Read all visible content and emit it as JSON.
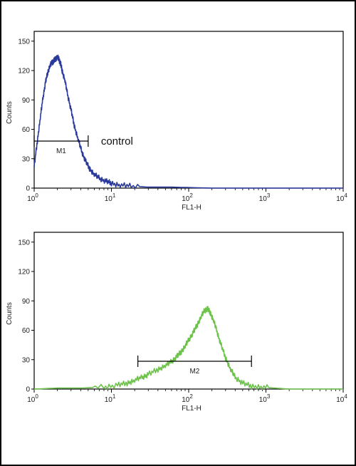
{
  "chart_data": [
    {
      "type": "line",
      "color": "#2a3a9c",
      "xlabel": "FL1-H",
      "ylabel": "Counts",
      "xscale": "log",
      "xlim": [
        1,
        10000
      ],
      "ylim": [
        0,
        160
      ],
      "x_ticks": [
        "10^0",
        "10^1",
        "10^2",
        "10^3",
        "10^4"
      ],
      "y_ticks": [
        0,
        30,
        60,
        90,
        120,
        150
      ],
      "gate": {
        "label": "M1",
        "range": [
          1,
          5
        ]
      },
      "annotation": "control",
      "series": [
        {
          "x": [
            1.0,
            1.1,
            1.2,
            1.3,
            1.4,
            1.5,
            1.6,
            1.7,
            1.8,
            1.9,
            2.0,
            2.1,
            2.2,
            2.3,
            2.5,
            2.7,
            3.0,
            3.3,
            3.7,
            4.1,
            4.6,
            5.2,
            6.0,
            7.0,
            8.5,
            10,
            13,
            18,
            30,
            60,
            200,
            1000,
            10000
          ],
          "y": [
            22,
            48,
            72,
            92,
            108,
            118,
            125,
            128,
            130,
            132,
            134,
            131,
            127,
            120,
            110,
            96,
            80,
            64,
            50,
            38,
            28,
            20,
            14,
            10,
            7,
            5,
            3,
            2,
            1,
            1,
            0,
            0,
            0
          ]
        }
      ]
    },
    {
      "type": "line",
      "color": "#6cc24a",
      "xlabel": "FL1-H",
      "ylabel": "Counts",
      "xscale": "log",
      "xlim": [
        1,
        10000
      ],
      "ylim": [
        0,
        160
      ],
      "x_ticks": [
        "10^0",
        "10^1",
        "10^2",
        "10^3",
        "10^4"
      ],
      "y_ticks": [
        0,
        30,
        60,
        90,
        120,
        150
      ],
      "gate": {
        "label": "M2",
        "range": [
          22,
          650
        ]
      },
      "series": [
        {
          "x": [
            1,
            2,
            4,
            8,
            12,
            16,
            20,
            25,
            30,
            40,
            50,
            60,
            70,
            80,
            90,
            100,
            115,
            130,
            145,
            160,
            175,
            190,
            210,
            230,
            260,
            300,
            350,
            400,
            500,
            650,
            900,
            1300,
            2000,
            5000,
            10000
          ],
          "y": [
            0,
            1,
            1,
            2,
            4,
            6,
            9,
            12,
            15,
            20,
            24,
            28,
            33,
            38,
            44,
            50,
            58,
            66,
            74,
            80,
            82,
            78,
            70,
            60,
            46,
            32,
            20,
            12,
            6,
            3,
            2,
            1,
            0,
            0,
            0
          ]
        }
      ]
    }
  ]
}
